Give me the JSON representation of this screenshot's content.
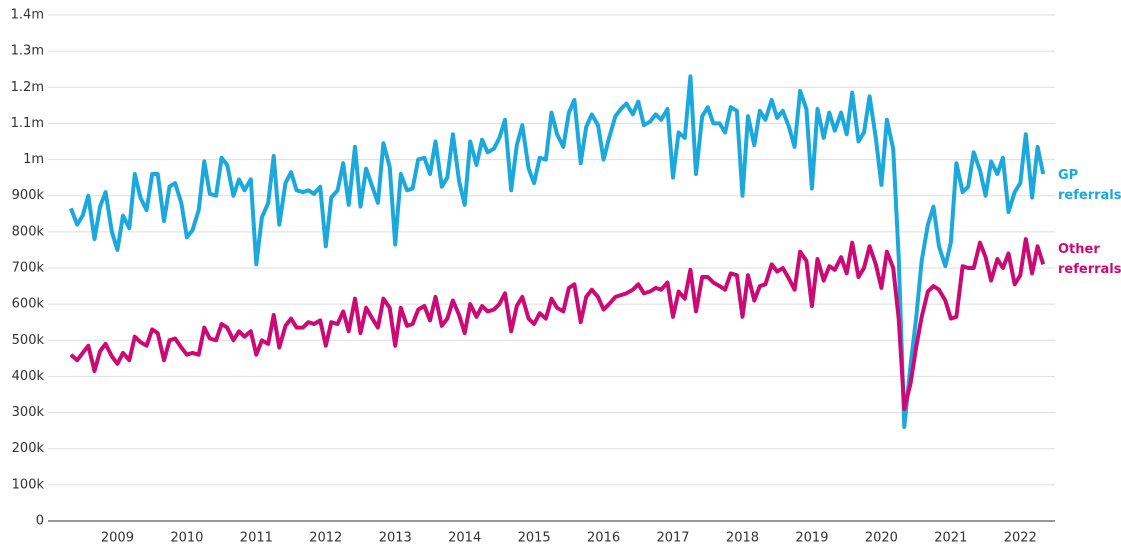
{
  "chart_data": {
    "type": "line",
    "x": [
      2008.33,
      2008.42,
      2008.5,
      2008.58,
      2008.67,
      2008.75,
      2008.83,
      2008.92,
      2009,
      2009.08,
      2009.17,
      2009.25,
      2009.33,
      2009.42,
      2009.5,
      2009.58,
      2009.67,
      2009.75,
      2009.83,
      2009.92,
      2010,
      2010.08,
      2010.17,
      2010.25,
      2010.33,
      2010.42,
      2010.5,
      2010.58,
      2010.67,
      2010.75,
      2010.83,
      2010.92,
      2011,
      2011.08,
      2011.17,
      2011.25,
      2011.33,
      2011.42,
      2011.5,
      2011.58,
      2011.67,
      2011.75,
      2011.83,
      2011.92,
      2012,
      2012.08,
      2012.17,
      2012.25,
      2012.33,
      2012.42,
      2012.5,
      2012.58,
      2012.67,
      2012.75,
      2012.83,
      2012.92,
      2013,
      2013.08,
      2013.17,
      2013.25,
      2013.33,
      2013.42,
      2013.5,
      2013.58,
      2013.67,
      2013.75,
      2013.83,
      2013.92,
      2014,
      2014.08,
      2014.17,
      2014.25,
      2014.33,
      2014.42,
      2014.5,
      2014.58,
      2014.67,
      2014.75,
      2014.83,
      2014.92,
      2015,
      2015.08,
      2015.17,
      2015.25,
      2015.33,
      2015.42,
      2015.5,
      2015.58,
      2015.67,
      2015.75,
      2015.83,
      2015.92,
      2016,
      2016.08,
      2016.17,
      2016.25,
      2016.33,
      2016.42,
      2016.5,
      2016.58,
      2016.67,
      2016.75,
      2016.83,
      2016.92,
      2017,
      2017.08,
      2017.17,
      2017.25,
      2017.33,
      2017.42,
      2017.5,
      2017.58,
      2017.67,
      2017.75,
      2017.83,
      2017.92,
      2018,
      2018.08,
      2018.17,
      2018.25,
      2018.33,
      2018.42,
      2018.5,
      2018.58,
      2018.67,
      2018.75,
      2018.83,
      2018.92,
      2019,
      2019.08,
      2019.17,
      2019.25,
      2019.33,
      2019.42,
      2019.5,
      2019.58,
      2019.67,
      2019.75,
      2019.83,
      2019.92,
      2020,
      2020.08,
      2020.17,
      2020.25,
      2020.33,
      2020.42,
      2020.5,
      2020.58,
      2020.67,
      2020.75,
      2020.83,
      2020.92,
      2021,
      2021.08,
      2021.17,
      2021.25,
      2021.33,
      2021.42,
      2021.5,
      2021.58,
      2021.67,
      2021.75,
      2021.83,
      2021.92,
      2022,
      2022.08,
      2022.17,
      2022.25,
      2022.33
    ],
    "series": [
      {
        "name": "GP referrals",
        "color": "#1ba8dc",
        "values": [
          865000,
          820000,
          845000,
          900000,
          780000,
          870000,
          910000,
          800000,
          750000,
          845000,
          810000,
          960000,
          895000,
          860000,
          960000,
          960000,
          830000,
          925000,
          935000,
          880000,
          785000,
          805000,
          860000,
          995000,
          905000,
          900000,
          1005000,
          985000,
          900000,
          945000,
          915000,
          945000,
          710000,
          840000,
          880000,
          1010000,
          820000,
          935000,
          965000,
          915000,
          910000,
          915000,
          905000,
          925000,
          760000,
          895000,
          915000,
          990000,
          875000,
          1035000,
          870000,
          975000,
          925000,
          880000,
          1045000,
          980000,
          765000,
          960000,
          915000,
          920000,
          1000000,
          1005000,
          960000,
          1050000,
          925000,
          950000,
          1070000,
          940000,
          875000,
          1050000,
          985000,
          1055000,
          1020000,
          1030000,
          1060000,
          1110000,
          915000,
          1040000,
          1095000,
          975000,
          935000,
          1005000,
          1000000,
          1130000,
          1070000,
          1035000,
          1130000,
          1165000,
          990000,
          1090000,
          1125000,
          1095000,
          1000000,
          1060000,
          1120000,
          1140000,
          1155000,
          1125000,
          1160000,
          1095000,
          1105000,
          1125000,
          1110000,
          1140000,
          950000,
          1075000,
          1060000,
          1230000,
          960000,
          1120000,
          1145000,
          1100000,
          1100000,
          1075000,
          1145000,
          1135000,
          900000,
          1120000,
          1040000,
          1135000,
          1110000,
          1165000,
          1115000,
          1135000,
          1090000,
          1035000,
          1190000,
          1140000,
          920000,
          1140000,
          1060000,
          1130000,
          1080000,
          1130000,
          1070000,
          1185000,
          1050000,
          1075000,
          1175000,
          1060000,
          930000,
          1110000,
          1030000,
          730000,
          260000,
          430000,
          560000,
          720000,
          820000,
          870000,
          760000,
          705000,
          770000,
          990000,
          910000,
          925000,
          1020000,
          970000,
          900000,
          995000,
          960000,
          1005000,
          855000,
          910000,
          935000,
          1070000,
          895000,
          1035000,
          960000
        ]
      },
      {
        "name": "Other referrals",
        "color": "#cc0a76",
        "values": [
          460000,
          445000,
          465000,
          485000,
          415000,
          470000,
          490000,
          455000,
          435000,
          465000,
          445000,
          510000,
          495000,
          485000,
          530000,
          520000,
          445000,
          500000,
          505000,
          480000,
          460000,
          465000,
          460000,
          535000,
          505000,
          500000,
          545000,
          535000,
          500000,
          525000,
          510000,
          525000,
          460000,
          500000,
          490000,
          570000,
          480000,
          540000,
          560000,
          535000,
          535000,
          550000,
          545000,
          555000,
          485000,
          550000,
          545000,
          580000,
          525000,
          615000,
          520000,
          590000,
          560000,
          535000,
          615000,
          590000,
          485000,
          590000,
          540000,
          545000,
          585000,
          595000,
          555000,
          620000,
          540000,
          560000,
          610000,
          570000,
          520000,
          600000,
          565000,
          595000,
          580000,
          585000,
          600000,
          630000,
          525000,
          595000,
          620000,
          560000,
          545000,
          575000,
          560000,
          615000,
          590000,
          580000,
          645000,
          655000,
          550000,
          620000,
          640000,
          620000,
          585000,
          600000,
          620000,
          625000,
          630000,
          640000,
          655000,
          630000,
          635000,
          645000,
          640000,
          660000,
          565000,
          635000,
          615000,
          695000,
          580000,
          675000,
          675000,
          660000,
          650000,
          640000,
          685000,
          680000,
          565000,
          680000,
          610000,
          650000,
          655000,
          710000,
          690000,
          700000,
          670000,
          640000,
          745000,
          720000,
          595000,
          725000,
          665000,
          705000,
          695000,
          730000,
          685000,
          770000,
          675000,
          700000,
          760000,
          710000,
          645000,
          745000,
          700000,
          560000,
          310000,
          380000,
          480000,
          565000,
          635000,
          650000,
          640000,
          610000,
          560000,
          565000,
          705000,
          700000,
          700000,
          770000,
          730000,
          665000,
          725000,
          700000,
          740000,
          655000,
          680000,
          780000,
          685000,
          760000,
          710000
        ]
      }
    ],
    "xlim": [
      2008,
      2022.5
    ],
    "xticks": [
      2009,
      2010,
      2011,
      2012,
      2013,
      2014,
      2015,
      2016,
      2017,
      2018,
      2019,
      2020,
      2021,
      2022
    ],
    "ylim": [
      0,
      1400000
    ],
    "yticks": [
      0,
      {
        "value": 100000,
        "label": "100k"
      },
      {
        "value": 200000,
        "label": "200k"
      },
      {
        "value": 300000,
        "label": "300k"
      },
      {
        "value": 400000,
        "label": "400k"
      },
      {
        "value": 500000,
        "label": "500k"
      },
      {
        "value": 600000,
        "label": "600k"
      },
      {
        "value": 700000,
        "label": "700k"
      },
      {
        "value": 800000,
        "label": "800k"
      },
      {
        "value": 900000,
        "label": "900k"
      },
      {
        "value": 1000000,
        "label": "1m"
      },
      {
        "value": 1100000,
        "label": "1.1m"
      },
      {
        "value": 1200000,
        "label": "1.2m"
      },
      {
        "value": 1300000,
        "label": "1.3m"
      },
      {
        "value": 1400000,
        "label": "1.4m"
      }
    ],
    "grid": true
  }
}
